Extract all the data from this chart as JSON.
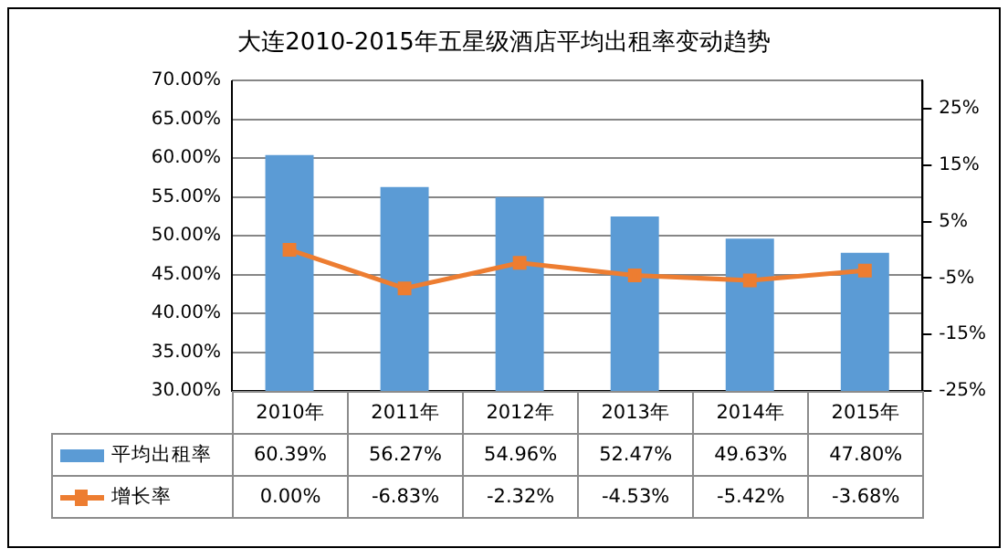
{
  "chart_data": {
    "type": "bar",
    "title": "大连2010-2015年五星级酒店平均出租率变动趋势",
    "categories": [
      "2010年",
      "2011年",
      "2012年",
      "2013年",
      "2014年",
      "2015年"
    ],
    "series": [
      {
        "name": "平均出租率",
        "color": "#5b9bd5",
        "values": [
          60.39,
          56.27,
          54.96,
          52.47,
          49.63,
          47.8
        ],
        "value_labels": [
          "60.39%",
          "56.27%",
          "54.96%",
          "52.47%",
          "49.63%",
          "47.80%"
        ]
      },
      {
        "name": "增长率",
        "type": "line",
        "axis": "y2",
        "color": "#ed7d31",
        "marker": "square",
        "values": [
          0.0,
          -6.83,
          -2.32,
          -4.53,
          -5.42,
          -3.68
        ],
        "value_labels": [
          "0.00%",
          "-6.83%",
          "-2.32%",
          "-4.53%",
          "-5.42%",
          "-3.68%"
        ]
      }
    ],
    "ylim": [
      30,
      70
    ],
    "yticks": [
      {
        "value": 30,
        "label": "30.00%"
      },
      {
        "value": 35,
        "label": "35.00%"
      },
      {
        "value": 40,
        "label": "40.00%"
      },
      {
        "value": 45,
        "label": "45.00%"
      },
      {
        "value": 50,
        "label": "50.00%"
      },
      {
        "value": 55,
        "label": "55.00%"
      },
      {
        "value": 60,
        "label": "60.00%"
      },
      {
        "value": 65,
        "label": "65.00%"
      },
      {
        "value": 70,
        "label": "70.00%"
      }
    ],
    "y2lim": [
      -25,
      30
    ],
    "y2ticks": [
      {
        "value": -25,
        "label": "-25%"
      },
      {
        "value": -15,
        "label": "-15%"
      },
      {
        "value": -5,
        "label": "-5%"
      },
      {
        "value": 5,
        "label": "5%"
      },
      {
        "value": 15,
        "label": "15%"
      },
      {
        "value": 25,
        "label": "25%"
      }
    ],
    "grid": "y",
    "legend": "bottom"
  }
}
